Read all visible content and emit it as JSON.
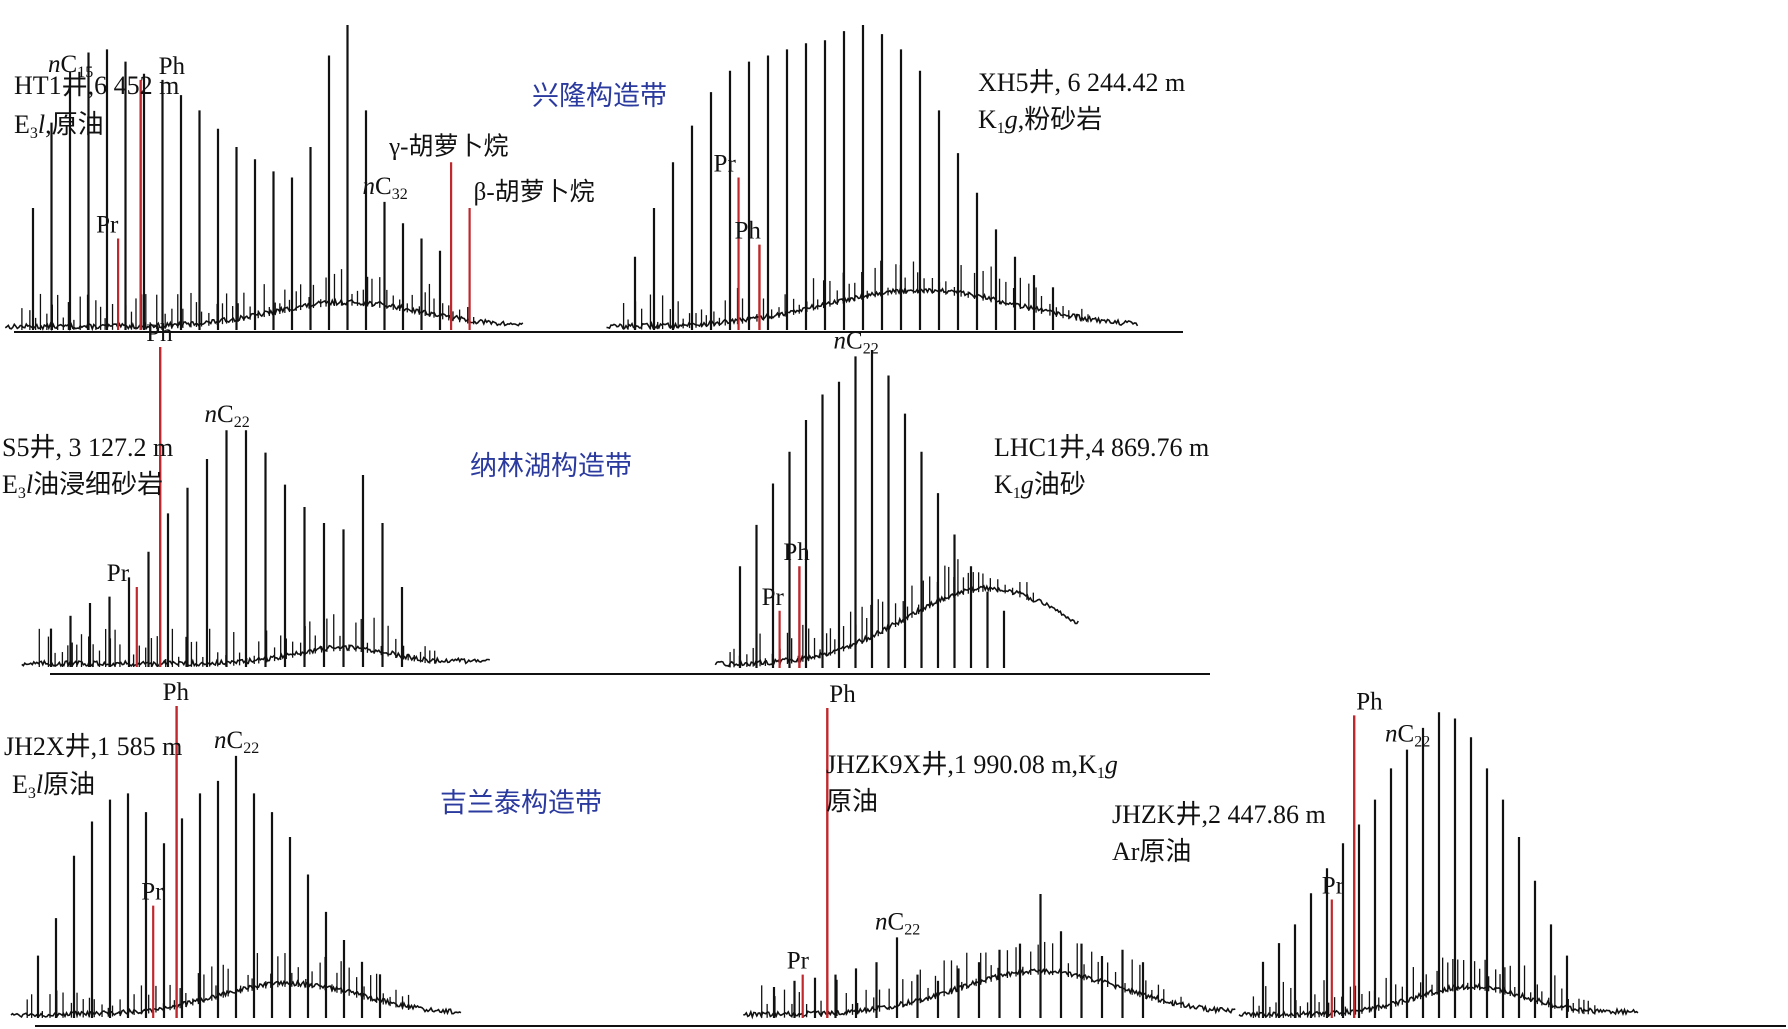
{
  "colors": {
    "trace": "#111111",
    "marker": "#c0282d",
    "zone": "#2b3a9e"
  },
  "chart_data": [
    {
      "type": "line",
      "title": "HT1井,6 452 m",
      "lithology": "原油",
      "formation": {
        "main": "E",
        "sub": "3",
        "suffix": "l",
        "sep": ","
      },
      "zone": "兴隆构造带",
      "normal_alkanes": {
        "start": 13,
        "end": 35,
        "heights": [
          0.4,
          0.68,
          0.82,
          0.91,
          0.92,
          0.88,
          0.84,
          0.82,
          0.77,
          0.72,
          0.66,
          0.6,
          0.56,
          0.52,
          0.5,
          0.6,
          0.9,
          1.0,
          0.72,
          0.42,
          0.35,
          0.3,
          0.26
        ]
      },
      "peak_labels": [
        {
          "text": "nC15",
          "carbon": 15
        },
        {
          "text": "nC32",
          "carbon": 32
        }
      ],
      "isoprenoids": {
        "Pr": 0.3,
        "Ph": 0.82
      },
      "extra_markers": [
        {
          "text": "γ-胡萝卜烷",
          "carbon": 35.6,
          "height": 0.55
        },
        {
          "text": "β-胡萝卜烷",
          "carbon": 36.6,
          "height": 0.4
        }
      ],
      "hump": {
        "center": 30,
        "width": 4,
        "height": 0.08
      }
    },
    {
      "type": "line",
      "title": "XH5井, 6 244.42 m",
      "lithology": "粉砂岩",
      "formation": {
        "main": "K",
        "sub": "1",
        "suffix": "g",
        "sep": ","
      },
      "normal_alkanes": {
        "start": 12,
        "end": 34,
        "heights": [
          0.24,
          0.4,
          0.55,
          0.67,
          0.78,
          0.85,
          0.88,
          0.9,
          0.92,
          0.94,
          0.95,
          0.98,
          1.0,
          0.97,
          0.92,
          0.85,
          0.72,
          0.58,
          0.45,
          0.33,
          0.24,
          0.18,
          0.14
        ]
      },
      "peak_labels": [],
      "isoprenoids": {
        "Pr": 0.5,
        "Ph": 0.28
      },
      "hump": {
        "center": 27,
        "width": 5,
        "height": 0.12
      }
    },
    {
      "type": "line",
      "title": "S5井, 3 127.2 m",
      "lithology": "油浸细砂岩",
      "formation": {
        "main": "E",
        "sub": "3",
        "suffix": "l",
        "sep": ""
      },
      "zone": "纳林湖构造带",
      "normal_alkanes": {
        "start": 13,
        "end": 31,
        "heights": [
          0.12,
          0.16,
          0.2,
          0.22,
          0.28,
          0.36,
          0.48,
          0.56,
          0.65,
          0.74,
          0.74,
          0.67,
          0.57,
          0.5,
          0.45,
          0.43,
          0.6,
          0.45,
          0.25
        ]
      },
      "peak_labels": [
        {
          "text": "nC22",
          "carbon": 22
        }
      ],
      "isoprenoids": {
        "Pr": 0.25,
        "Ph": 1.0
      },
      "hump": {
        "center": 28,
        "width": 2.5,
        "height": 0.05
      }
    },
    {
      "type": "line",
      "title": "LHC1井,4 869.76 m",
      "lithology": "油砂",
      "formation": {
        "main": "K",
        "sub": "1",
        "suffix": "g",
        "sep": ""
      },
      "normal_alkanes": {
        "start": 15,
        "end": 31,
        "heights": [
          0.32,
          0.45,
          0.58,
          0.68,
          0.78,
          0.86,
          0.9,
          0.98,
          1.0,
          0.92,
          0.8,
          0.68,
          0.55,
          0.42,
          0.32,
          0.24,
          0.18
        ]
      },
      "peak_labels": [
        {
          "text": "nC22",
          "carbon": 22
        }
      ],
      "isoprenoids": {
        "Pr": 0.18,
        "Ph": 0.32
      },
      "hump": {
        "center": 30,
        "width": 5,
        "height": 0.24
      }
    },
    {
      "type": "line",
      "title": "JH2X井,1 585 m",
      "lithology": "原油",
      "formation": {
        "main": "E",
        "sub": "3",
        "suffix": "l",
        "sep": ""
      },
      "zone": "吉兰泰构造带",
      "normal_alkanes": {
        "start": 11,
        "end": 30,
        "heights": [
          0.2,
          0.32,
          0.52,
          0.63,
          0.7,
          0.72,
          0.66,
          0.56,
          0.64,
          0.72,
          0.76,
          0.84,
          0.72,
          0.66,
          0.58,
          0.46,
          0.34,
          0.25,
          0.18,
          0.14
        ]
      },
      "peak_labels": [
        {
          "text": "nC22",
          "carbon": 22
        }
      ],
      "isoprenoids": {
        "Pr": 0.36,
        "Ph": 1.0
      },
      "hump": {
        "center": 25,
        "width": 4,
        "height": 0.1
      }
    },
    {
      "type": "line",
      "title": "JHZK9X井,1 990.08 m,",
      "lithology": "原油",
      "formation": {
        "main": "K",
        "sub": "1",
        "suffix": "g",
        "sep": ""
      },
      "normal_alkanes": {
        "start": 16,
        "end": 34,
        "heights": [
          0.1,
          0.12,
          0.13,
          0.14,
          0.16,
          0.18,
          0.26,
          0.14,
          0.12,
          0.16,
          0.18,
          0.22,
          0.24,
          0.4,
          0.28,
          0.24,
          0.2,
          0.22,
          0.18
        ]
      },
      "peak_labels": [
        {
          "text": "nC22",
          "carbon": 22
        }
      ],
      "isoprenoids": {
        "Pr": 0.14,
        "Ph": 1.0
      },
      "hump": {
        "center": 29,
        "width": 4,
        "height": 0.14
      }
    },
    {
      "type": "line",
      "title": "JHZK井,2 447.86 m",
      "lithology": "Ar原油",
      "normal_alkanes": {
        "start": 13,
        "end": 32,
        "heights": [
          0.18,
          0.24,
          0.3,
          0.4,
          0.48,
          0.56,
          0.62,
          0.7,
          0.8,
          0.86,
          0.93,
          0.98,
          0.96,
          0.9,
          0.8,
          0.7,
          0.58,
          0.44,
          0.3,
          0.2
        ]
      },
      "peak_labels": [
        {
          "text": "nC22",
          "carbon": 22
        }
      ],
      "isoprenoids": {
        "Pr": 0.38,
        "Ph": 0.97
      },
      "hump": {
        "center": 26,
        "width": 3.5,
        "height": 0.09
      }
    }
  ]
}
